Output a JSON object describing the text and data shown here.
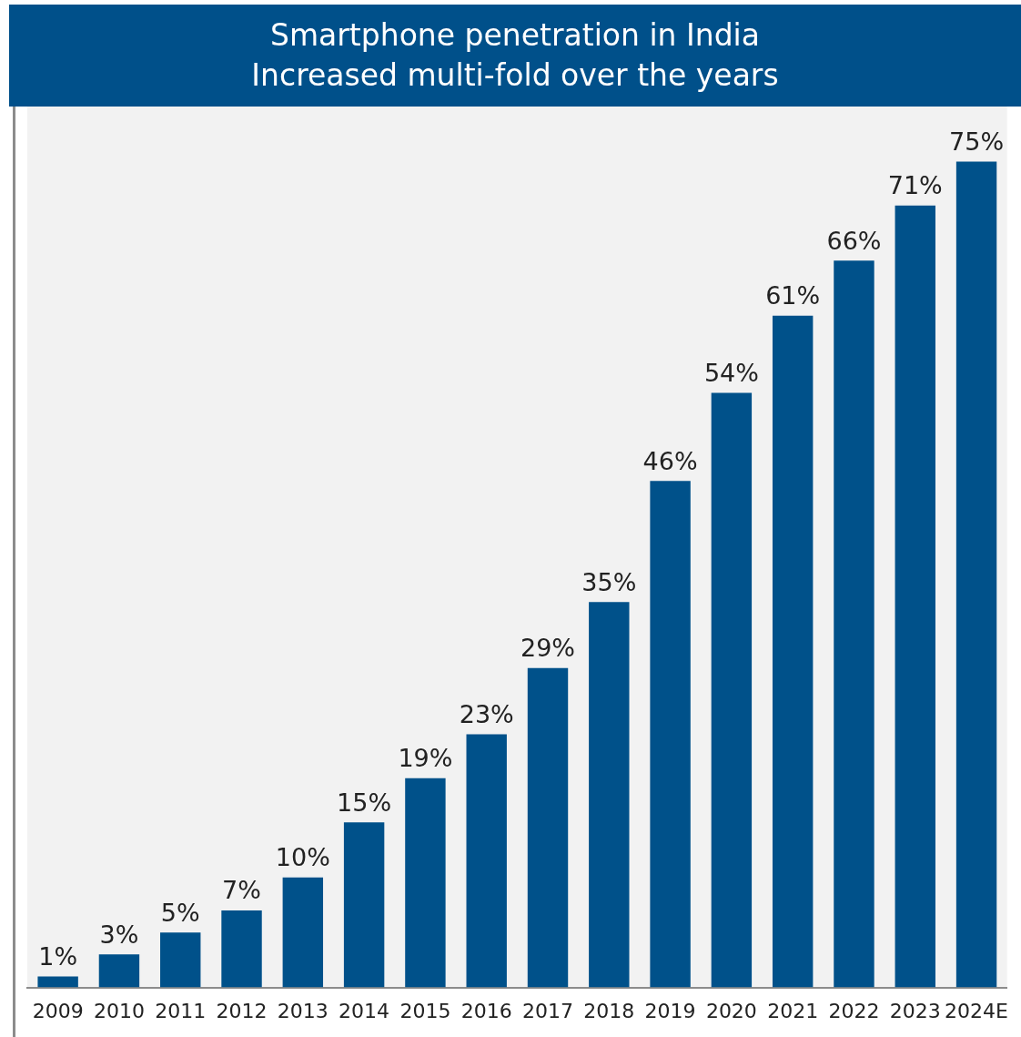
{
  "chart_data": {
    "type": "bar",
    "title": "Smartphone penetration in India\nIncreased multi-fold over the years",
    "categories": [
      "2009",
      "2010",
      "2011",
      "2012",
      "2013",
      "2014",
      "2015",
      "2016",
      "2017",
      "2018",
      "2019",
      "2020",
      "2021",
      "2022",
      "2023",
      "2024E"
    ],
    "values": [
      1,
      3,
      5,
      7,
      10,
      15,
      19,
      23,
      29,
      35,
      46,
      54,
      61,
      66,
      71,
      75
    ],
    "value_labels": [
      "1%",
      "3%",
      "5%",
      "7%",
      "10%",
      "15%",
      "19%",
      "23%",
      "29%",
      "35%",
      "46%",
      "54%",
      "61%",
      "66%",
      "71%",
      "75%"
    ],
    "color": "#00518a",
    "relative": false,
    "grid": false,
    "legend": false
  }
}
